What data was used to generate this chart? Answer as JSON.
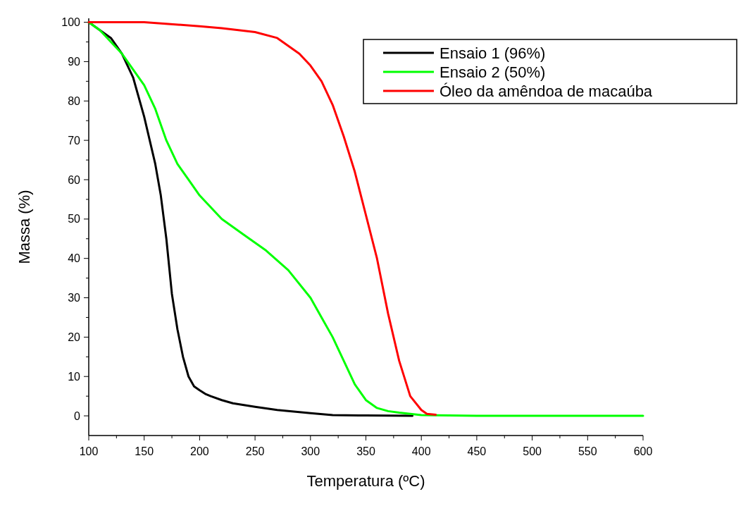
{
  "chart_data": {
    "type": "line",
    "xlabel": "Temperatura (ºC)",
    "ylabel": "Massa (%)",
    "xlim": [
      100,
      600
    ],
    "ylim": [
      -5,
      101
    ],
    "xticks": [
      100,
      150,
      200,
      250,
      300,
      350,
      400,
      450,
      500,
      550,
      600
    ],
    "yticks": [
      0,
      10,
      20,
      30,
      40,
      50,
      60,
      70,
      80,
      90,
      100
    ],
    "grid": false,
    "legend": "top right",
    "marker": "none",
    "line_style": "solid",
    "series": [
      {
        "name": "Ensaio 1 (96%)",
        "color": "#000000",
        "x": [
          100,
          110,
          120,
          130,
          140,
          150,
          160,
          165,
          170,
          175,
          180,
          185,
          190,
          195,
          200,
          205,
          210,
          220,
          230,
          250,
          270,
          300,
          320,
          350,
          392
        ],
        "values": [
          100,
          98,
          96,
          92,
          86,
          76,
          64,
          56,
          45,
          31,
          22,
          15,
          10,
          7.5,
          6.5,
          5.6,
          5,
          4,
          3.2,
          2.3,
          1.5,
          0.7,
          0.2,
          0.1,
          0
        ]
      },
      {
        "name": "Ensaio 2 (50%)",
        "color": "#00ff00",
        "x": [
          100,
          110,
          120,
          130,
          140,
          150,
          160,
          170,
          180,
          190,
          200,
          220,
          240,
          260,
          280,
          300,
          310,
          320,
          330,
          340,
          350,
          360,
          370,
          380,
          400,
          450,
          500,
          550,
          600
        ],
        "values": [
          100,
          98,
          95,
          92,
          88,
          84,
          78,
          70,
          64,
          60,
          56,
          50,
          46,
          42,
          37,
          30,
          25,
          20,
          14,
          8,
          4,
          2,
          1.2,
          0.8,
          0.2,
          0,
          0,
          0,
          0
        ]
      },
      {
        "name": "Óleo da amêndoa de macaúba",
        "color": "#ff0000",
        "x": [
          100,
          150,
          200,
          220,
          250,
          270,
          290,
          300,
          310,
          320,
          330,
          340,
          350,
          360,
          370,
          380,
          390,
          400,
          405,
          413
        ],
        "values": [
          100,
          100,
          99,
          98.5,
          97.5,
          96,
          92,
          89,
          85,
          79,
          71,
          62,
          51,
          40,
          26,
          14,
          5,
          1.5,
          0.5,
          0.3
        ]
      }
    ]
  }
}
